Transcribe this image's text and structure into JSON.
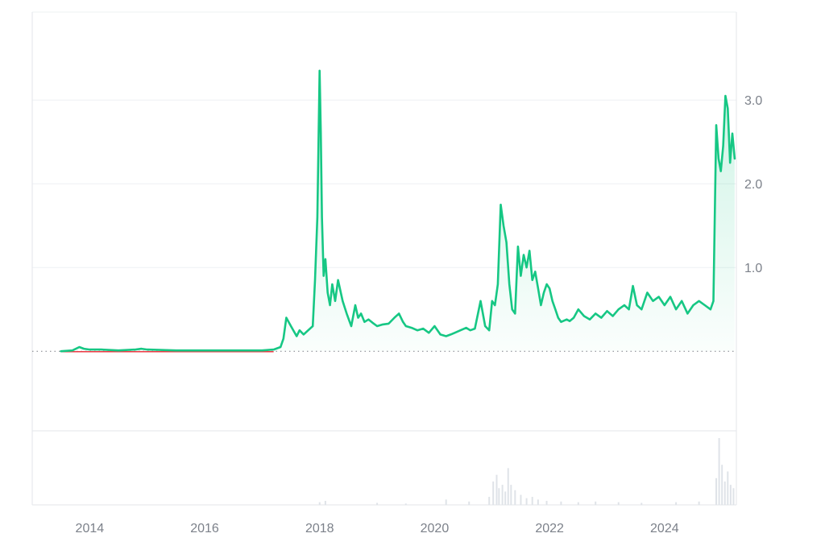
{
  "colors": {
    "line": "#16c784",
    "below_line": "#ea3943",
    "grid": "#eef0f3",
    "frame": "#e3e6ea",
    "baseline_dots": "#7c7f85",
    "tick_text": "#7c818a",
    "volume": "#dfe3e8"
  },
  "chart_data": {
    "type": "line",
    "xlim": [
      2013.0,
      2025.25
    ],
    "ylim": [
      -0.95,
      4.05
    ],
    "y_ticks": [
      {
        "value": 1.0,
        "label": "1.0"
      },
      {
        "value": 2.0,
        "label": "2.0"
      },
      {
        "value": 3.0,
        "label": "3.0"
      }
    ],
    "x_ticks": [
      {
        "value": 2014,
        "label": "2014"
      },
      {
        "value": 2016,
        "label": "2016"
      },
      {
        "value": 2018,
        "label": "2018"
      },
      {
        "value": 2020,
        "label": "2020"
      },
      {
        "value": 2022,
        "label": "2022"
      },
      {
        "value": 2024,
        "label": "2024"
      }
    ],
    "baseline": 0.0,
    "series": [
      {
        "x": [
          2013.5,
          2013.7,
          2013.82,
          2013.9,
          2014.0,
          2014.2,
          2014.5,
          2014.8,
          2014.9,
          2015.0,
          2015.5,
          2016.0,
          2016.5,
          2017.0,
          2017.2,
          2017.32,
          2017.37,
          2017.42,
          2017.5,
          2017.6,
          2017.65,
          2017.72,
          2017.8,
          2017.88,
          2017.92,
          2017.96,
          2018.0,
          2018.02,
          2018.04,
          2018.07,
          2018.1,
          2018.14,
          2018.18,
          2018.22,
          2018.27,
          2018.32,
          2018.4,
          2018.47,
          2018.55,
          2018.62,
          2018.67,
          2018.72,
          2018.78,
          2018.85,
          2018.92,
          2019.0,
          2019.1,
          2019.2,
          2019.3,
          2019.38,
          2019.45,
          2019.5,
          2019.6,
          2019.7,
          2019.8,
          2019.9,
          2020.0,
          2020.1,
          2020.2,
          2020.28,
          2020.35,
          2020.45,
          2020.55,
          2020.62,
          2020.7,
          2020.8,
          2020.88,
          2020.95,
          2021.0,
          2021.05,
          2021.1,
          2021.15,
          2021.2,
          2021.25,
          2021.3,
          2021.35,
          2021.4,
          2021.45,
          2021.5,
          2021.55,
          2021.6,
          2021.65,
          2021.7,
          2021.75,
          2021.8,
          2021.85,
          2021.9,
          2021.95,
          2022.0,
          2022.05,
          2022.1,
          2022.15,
          2022.2,
          2022.3,
          2022.35,
          2022.42,
          2022.5,
          2022.6,
          2022.7,
          2022.8,
          2022.9,
          2023.0,
          2023.1,
          2023.2,
          2023.3,
          2023.38,
          2023.45,
          2023.52,
          2023.6,
          2023.7,
          2023.8,
          2023.9,
          2024.0,
          2024.1,
          2024.2,
          2024.3,
          2024.4,
          2024.5,
          2024.6,
          2024.7,
          2024.8,
          2024.85,
          2024.9,
          2024.94,
          2024.98,
          2025.02,
          2025.06,
          2025.1,
          2025.14,
          2025.18,
          2025.22
        ],
        "y": [
          0.0,
          0.01,
          0.05,
          0.03,
          0.02,
          0.02,
          0.01,
          0.02,
          0.03,
          0.02,
          0.01,
          0.01,
          0.01,
          0.01,
          0.02,
          0.05,
          0.15,
          0.4,
          0.3,
          0.18,
          0.25,
          0.2,
          0.25,
          0.3,
          0.85,
          1.6,
          3.35,
          2.6,
          1.6,
          0.9,
          1.1,
          0.7,
          0.55,
          0.8,
          0.6,
          0.85,
          0.6,
          0.45,
          0.3,
          0.55,
          0.4,
          0.45,
          0.35,
          0.38,
          0.34,
          0.3,
          0.32,
          0.33,
          0.4,
          0.45,
          0.35,
          0.3,
          0.28,
          0.25,
          0.27,
          0.22,
          0.3,
          0.2,
          0.18,
          0.2,
          0.22,
          0.25,
          0.28,
          0.25,
          0.27,
          0.6,
          0.3,
          0.25,
          0.6,
          0.55,
          0.8,
          1.75,
          1.5,
          1.3,
          0.8,
          0.5,
          0.45,
          1.25,
          0.9,
          1.15,
          1.0,
          1.2,
          0.85,
          0.95,
          0.75,
          0.55,
          0.7,
          0.8,
          0.75,
          0.6,
          0.5,
          0.4,
          0.35,
          0.38,
          0.36,
          0.4,
          0.5,
          0.42,
          0.38,
          0.45,
          0.4,
          0.48,
          0.42,
          0.5,
          0.55,
          0.5,
          0.78,
          0.55,
          0.5,
          0.7,
          0.6,
          0.65,
          0.55,
          0.65,
          0.5,
          0.6,
          0.45,
          0.55,
          0.6,
          0.55,
          0.5,
          0.6,
          2.7,
          2.3,
          2.15,
          2.45,
          3.05,
          2.9,
          2.25,
          2.6,
          2.3
        ]
      }
    ],
    "volume": {
      "x": [
        2018.0,
        2018.1,
        2019.0,
        2019.5,
        2020.2,
        2020.6,
        2020.95,
        2021.02,
        2021.08,
        2021.12,
        2021.18,
        2021.23,
        2021.28,
        2021.33,
        2021.4,
        2021.5,
        2021.6,
        2021.7,
        2021.8,
        2021.95,
        2022.2,
        2022.5,
        2022.8,
        2023.2,
        2023.6,
        2024.2,
        2024.6,
        2024.9,
        2024.95,
        2025.0,
        2025.05,
        2025.1,
        2025.15,
        2025.2
      ],
      "values": [
        0.04,
        0.06,
        0.03,
        0.02,
        0.08,
        0.05,
        0.12,
        0.35,
        0.45,
        0.25,
        0.3,
        0.2,
        0.55,
        0.3,
        0.22,
        0.15,
        0.1,
        0.12,
        0.08,
        0.06,
        0.05,
        0.04,
        0.05,
        0.04,
        0.03,
        0.04,
        0.05,
        0.4,
        1.0,
        0.6,
        0.35,
        0.5,
        0.3,
        0.25
      ]
    }
  }
}
